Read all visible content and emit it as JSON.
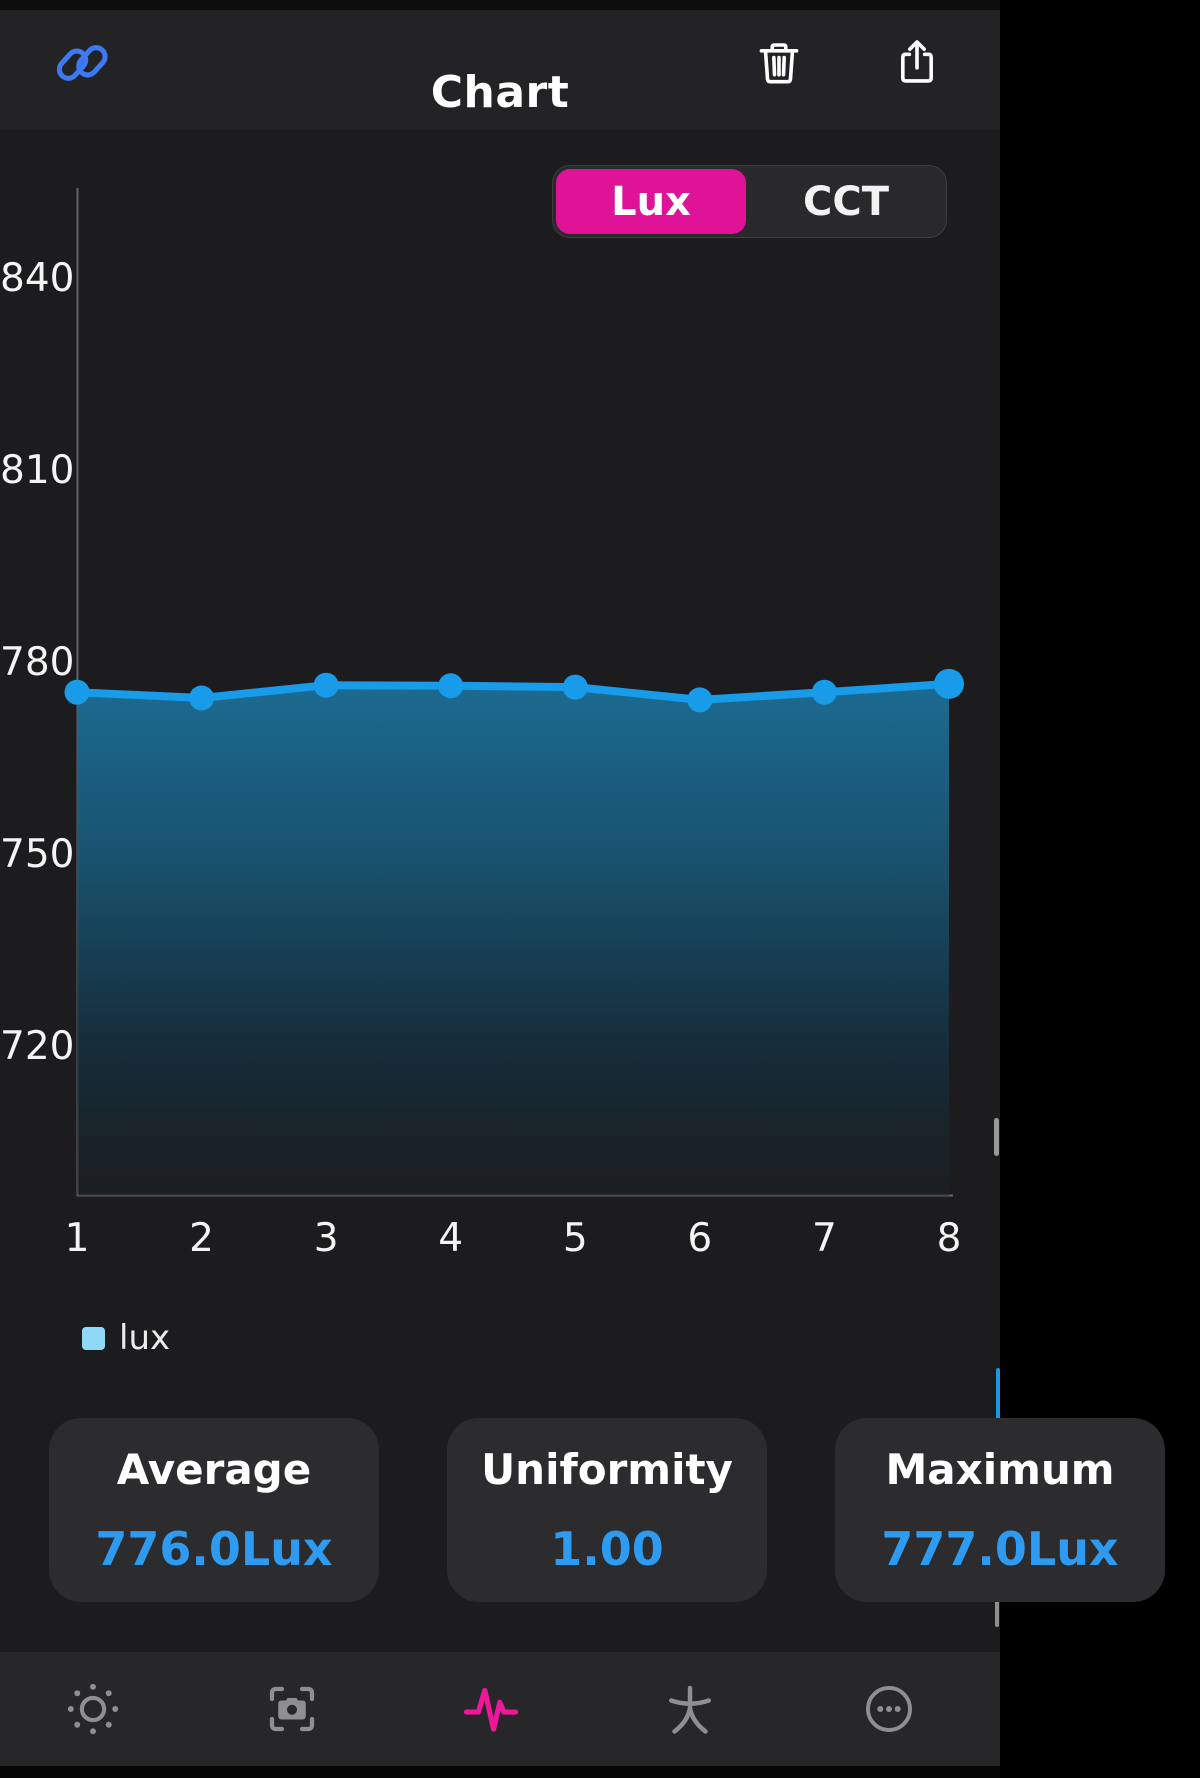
{
  "nav": {
    "title": "Chart",
    "icons": [
      "link-icon",
      "trash-icon",
      "share-icon"
    ]
  },
  "toggle": {
    "options": [
      "Lux",
      "CCT"
    ],
    "selected": "Lux"
  },
  "chart_data": {
    "type": "line",
    "title": "",
    "xlabel": "",
    "ylabel": "",
    "x": [
      1,
      2,
      3,
      4,
      5,
      6,
      7,
      8
    ],
    "series": [
      {
        "name": "lux",
        "values": [
          775.9,
          775.0,
          777.0,
          776.9,
          776.7,
          774.7,
          775.9,
          777.2
        ]
      }
    ],
    "y_ticks": [
      840,
      810,
      780,
      750,
      720
    ],
    "ylim": [
      697,
      854
    ],
    "grid": false,
    "legend_position": "bottom-left",
    "legend_entries": [
      "lux"
    ],
    "area_fill": true
  },
  "legend": {
    "label": "lux",
    "swatch_color": "#8fd9f6"
  },
  "stats": [
    {
      "label": "Average",
      "value": "776.0Lux"
    },
    {
      "label": "Uniformity",
      "value": "1.00"
    },
    {
      "label": "Maximum",
      "value": "777.0Lux"
    }
  ],
  "tabbar": {
    "items": [
      "brightness-icon",
      "camera-capture-icon",
      "waveform-icon",
      "posture-icon",
      "more-icon"
    ],
    "active": "waveform-icon"
  },
  "colors": {
    "accent_magenta": "#de1397",
    "line_blue": "#189be8",
    "value_blue": "#2f9bf0",
    "legend_swatch": "#8fd9f6",
    "link_blue": "#3c79f3",
    "background": "#1c1c1e",
    "card_background": "#2c2c2e"
  }
}
